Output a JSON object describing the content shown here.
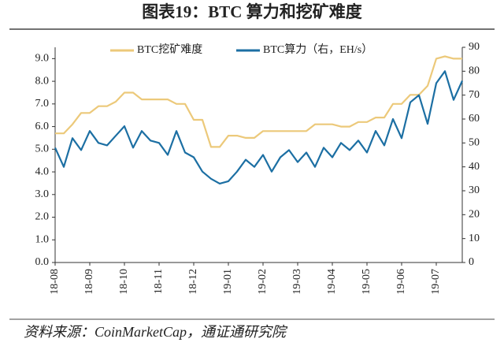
{
  "title": "图表19：BTC 算力和挖矿难度",
  "source": "资料来源：CoinMarketCap，通证通研究院",
  "chart_data": {
    "type": "line",
    "categories": [
      "18-08",
      null,
      null,
      null,
      "18-09",
      null,
      null,
      null,
      "18-10",
      null,
      null,
      null,
      "18-11",
      null,
      null,
      null,
      "18-12",
      null,
      null,
      null,
      "19-01",
      null,
      null,
      null,
      "19-02",
      null,
      null,
      null,
      "19-03",
      null,
      null,
      null,
      "19-04",
      null,
      null,
      null,
      "19-05",
      null,
      null,
      null,
      "19-06",
      null,
      null,
      null,
      "19-07",
      null,
      null,
      null
    ],
    "series": [
      {
        "name": "BTC挖矿难度",
        "color": "#ecc97a",
        "axis": "y",
        "values": [
          5.7,
          5.7,
          6.1,
          6.6,
          6.6,
          6.9,
          6.9,
          7.1,
          7.5,
          7.5,
          7.2,
          7.2,
          7.2,
          7.2,
          7.0,
          7.0,
          6.3,
          6.3,
          5.1,
          5.1,
          5.6,
          5.6,
          5.5,
          5.5,
          5.8,
          5.8,
          5.8,
          5.8,
          5.8,
          5.8,
          6.1,
          6.1,
          6.1,
          6.0,
          6.0,
          6.2,
          6.2,
          6.4,
          6.4,
          7.0,
          7.0,
          7.4,
          7.4,
          7.8,
          9.0,
          9.1,
          9.0,
          9.0
        ]
      },
      {
        "name": "BTC算力（右，EH/s）",
        "color": "#1c6fa3",
        "axis": "y2",
        "values": [
          48,
          40,
          52,
          47,
          55,
          50,
          49,
          53,
          57,
          48,
          55,
          51,
          50,
          45,
          55,
          46,
          44,
          38,
          35,
          33,
          34,
          38,
          43,
          40,
          45,
          38,
          44,
          47,
          42,
          46,
          40,
          48,
          44,
          50,
          47,
          51,
          46,
          55,
          49,
          60,
          52,
          67,
          70,
          58,
          75,
          80,
          68,
          76
        ]
      }
    ],
    "ylim": [
      0,
      9.5
    ],
    "yticks": [
      {
        "value": 0,
        "label": "0.0"
      },
      {
        "value": 1,
        "label": "1.0"
      },
      {
        "value": 2,
        "label": "2.0"
      },
      {
        "value": 3,
        "label": "3.0"
      },
      {
        "value": 4,
        "label": "4.0"
      },
      {
        "value": 5,
        "label": "5.0"
      },
      {
        "value": 6,
        "label": "6.0"
      },
      {
        "value": 7,
        "label": "7.0"
      },
      {
        "value": 8,
        "label": "8.0"
      },
      {
        "value": 9,
        "label": "9.0"
      }
    ],
    "y2lim": [
      0,
      90
    ],
    "y2ticks": [
      0,
      10,
      20,
      30,
      40,
      50,
      60,
      70,
      80,
      90
    ],
    "legend": "top"
  }
}
